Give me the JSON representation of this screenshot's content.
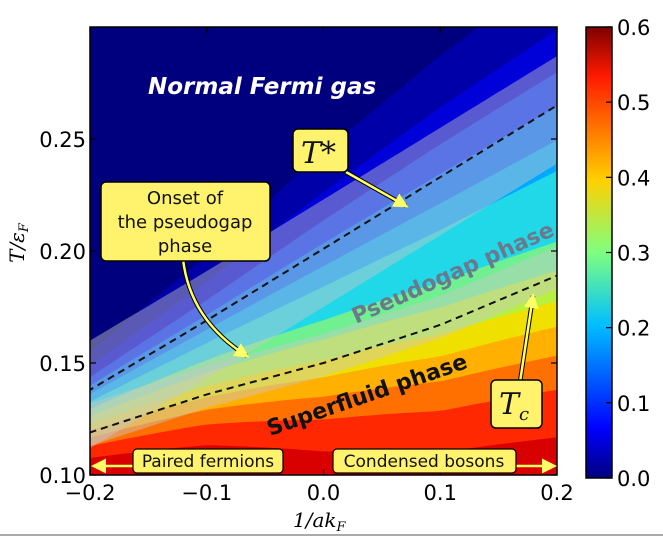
{
  "chart_data": {
    "type": "heatmap",
    "xlabel": "1/ak",
    "xlabel_sub": "F",
    "ylabel": "T/ε",
    "ylabel_sub": "F",
    "xlim": [
      -0.2,
      0.2
    ],
    "ylim": [
      0.1,
      0.3
    ],
    "x_ticks": [
      -0.2,
      -0.1,
      0.0,
      0.1,
      0.2
    ],
    "x_tick_labels": [
      "−0.2",
      "−0.1",
      "0.0",
      "0.1",
      "0.2"
    ],
    "y_ticks": [
      0.1,
      0.15,
      0.2,
      0.25
    ],
    "y_tick_labels": [
      "0.10",
      "0.15",
      "0.20",
      "0.25"
    ],
    "colorbar": {
      "range": [
        0.0,
        0.6
      ],
      "ticks": [
        0.0,
        0.1,
        0.2,
        0.3,
        0.4,
        0.5,
        0.6
      ],
      "tick_labels": [
        "0.0",
        "0.1",
        "0.2",
        "0.3",
        "0.4",
        "0.5",
        "0.6"
      ],
      "colormap": "jet"
    },
    "grid": false,
    "curves": {
      "T_star": {
        "style": "dashed",
        "x": [
          -0.2,
          -0.1,
          0.0,
          0.1,
          0.2
        ],
        "y": [
          0.138,
          0.169,
          0.201,
          0.233,
          0.265
        ]
      },
      "T_c": {
        "style": "dashed",
        "x": [
          -0.2,
          -0.1,
          0.0,
          0.1,
          0.2
        ],
        "y": [
          0.119,
          0.136,
          0.15,
          0.167,
          0.189
        ]
      }
    },
    "regions": {
      "normal": "Normal Fermi gas",
      "pseudogap": "Pseudogap phase",
      "superfluid": "Superfluid phase"
    },
    "annotations": {
      "T_star_label": "T*",
      "T_c_label": "T",
      "T_c_sub": "c",
      "onset_lines": [
        "Onset of",
        "the pseudogap",
        "phase"
      ],
      "paired_fermions": "Paired fermions",
      "condensed_bosons": "Condensed bosons"
    },
    "colors": {
      "annotation_box": "#fff36e",
      "arrow": "#ffff66",
      "band": "#c8c8c8"
    }
  }
}
